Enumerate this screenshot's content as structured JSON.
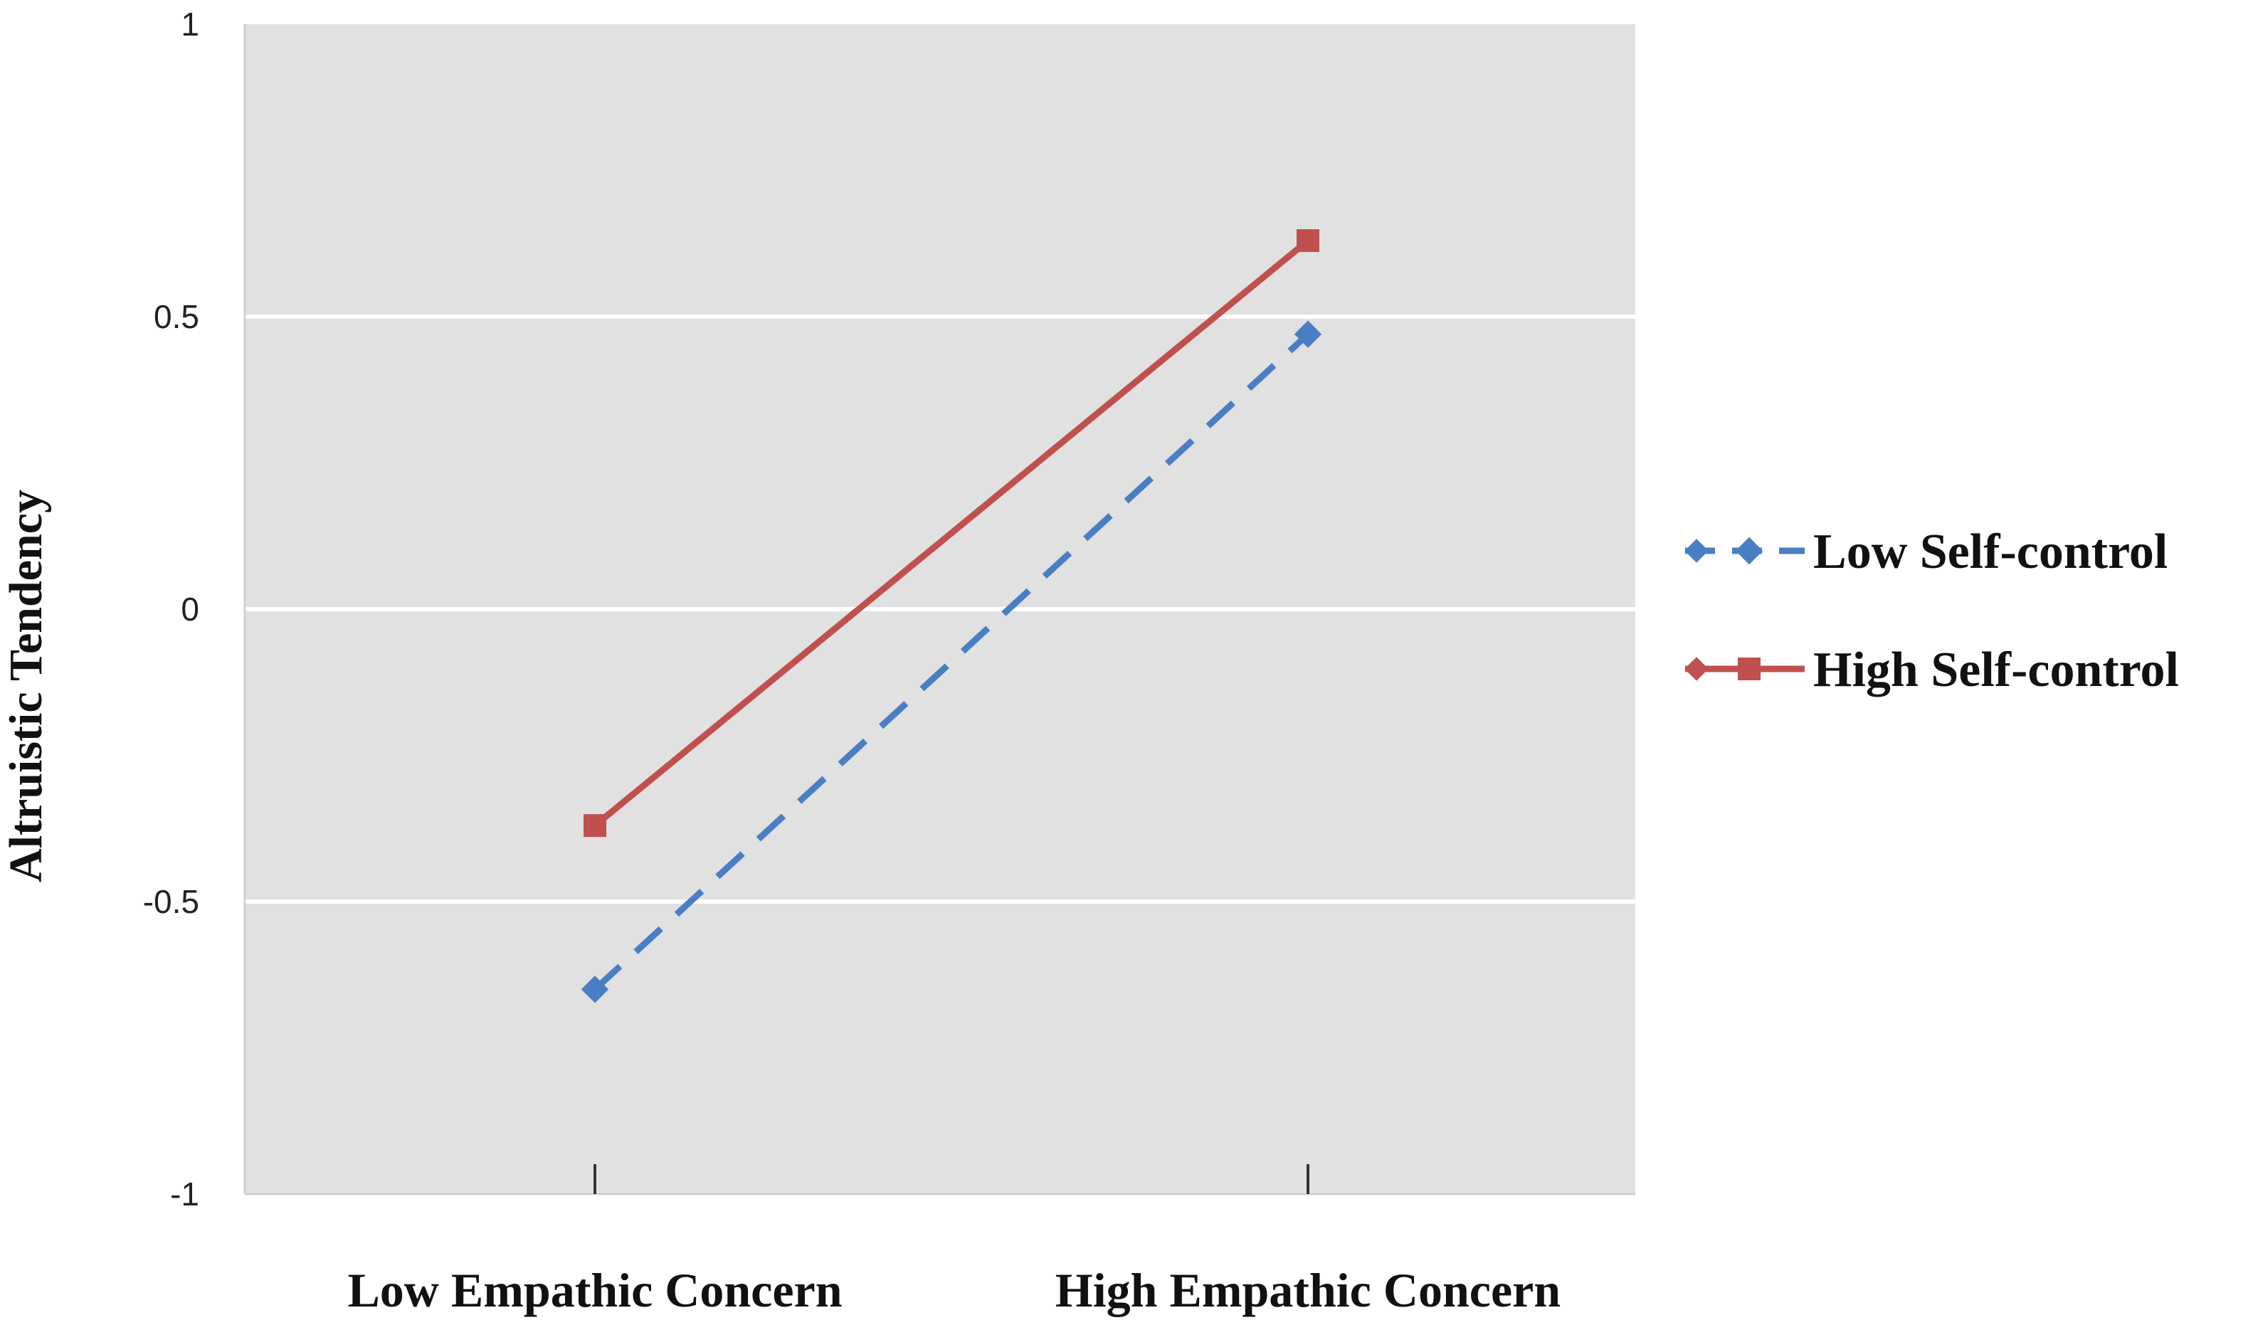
{
  "chart_data": {
    "type": "line",
    "categories": [
      "Low Empathic Concern",
      "High Empathic Concern"
    ],
    "ylabel": "Altruistic Tendency",
    "xlabel": "",
    "ylim": [
      -1,
      1
    ],
    "yticks": [
      "1",
      "0.5",
      "0",
      "-0.5",
      "-1"
    ],
    "ytick_values": [
      1,
      0.5,
      0,
      -0.5,
      -1
    ],
    "grid": true,
    "legend_position": "right",
    "series": [
      {
        "name": "Low Self-control",
        "values": [
          -0.65,
          0.47
        ],
        "color": "#4a7ec4",
        "style": "dashed",
        "marker": "diamond"
      },
      {
        "name": "High Self-control",
        "values": [
          -0.37,
          0.63
        ],
        "color": "#c0504d",
        "style": "solid",
        "marker": "square"
      }
    ]
  }
}
